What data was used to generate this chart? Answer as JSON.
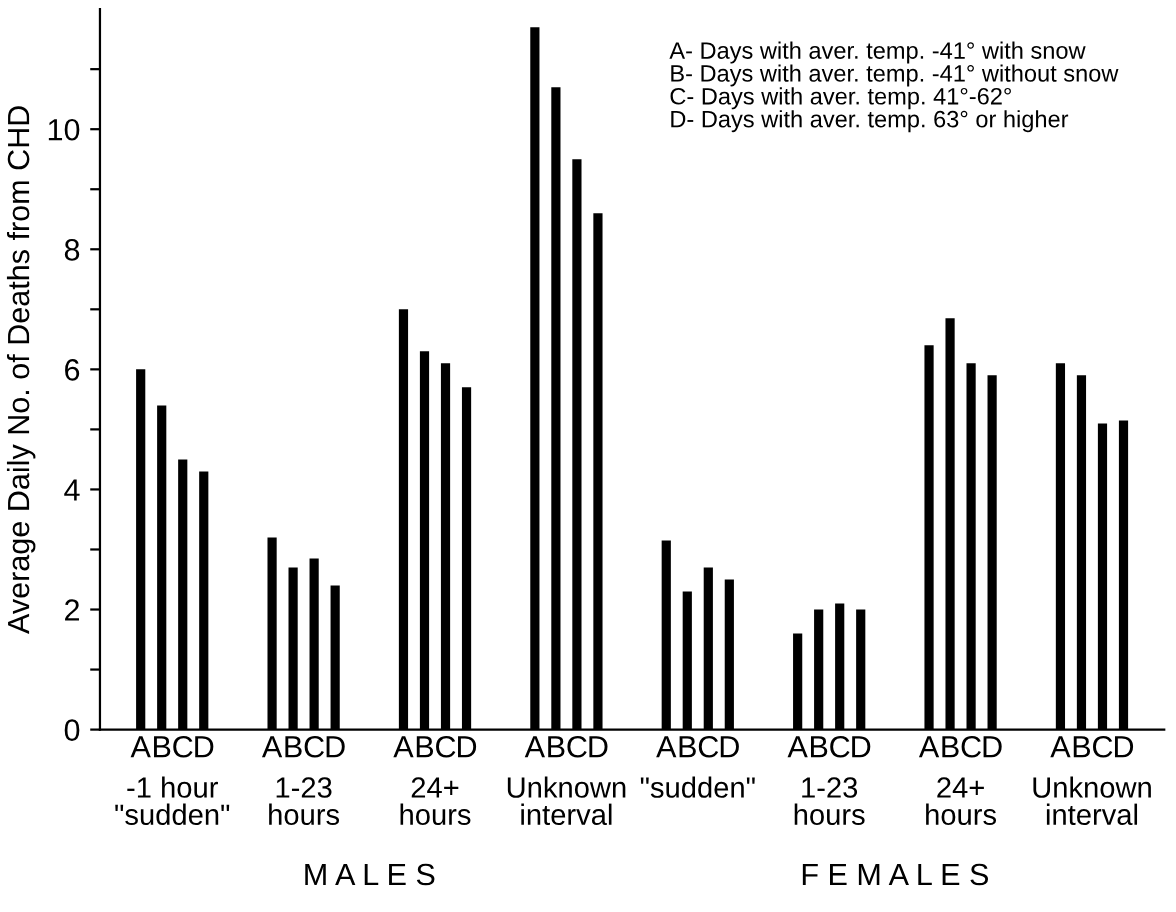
{
  "chart_data": {
    "type": "bar",
    "ylabel": "Average Daily No. of Deaths from CHD",
    "categories": [
      "-1 hour\n\"sudden\"",
      "1-23\nhours",
      "24+\nhours",
      "Unknown\ninterval",
      "\"sudden\"",
      "1-23\nhours",
      "24+\nhours",
      "Unknown\ninterval"
    ],
    "series": [
      {
        "name": "A",
        "color": "#000000",
        "values": [
          6.0,
          3.2,
          7.0,
          11.7,
          3.15,
          1.6,
          6.4,
          6.1
        ]
      },
      {
        "name": "B",
        "color": "#000000",
        "values": [
          5.4,
          2.7,
          6.3,
          10.7,
          2.3,
          2.0,
          6.85,
          5.9
        ]
      },
      {
        "name": "C",
        "color": "#000000",
        "values": [
          4.5,
          2.85,
          6.1,
          9.5,
          2.7,
          2.1,
          6.1,
          5.1
        ]
      },
      {
        "name": "D",
        "color": "#000000",
        "values": [
          4.3,
          2.4,
          5.7,
          8.6,
          2.5,
          2.0,
          5.9,
          5.15
        ]
      }
    ],
    "ylim": [
      0,
      12
    ],
    "yticks": [
      0,
      {
        "value": 1,
        "label": null
      },
      2,
      {
        "value": 3,
        "label": null
      },
      4,
      {
        "value": 5,
        "label": null
      },
      6,
      {
        "value": 7,
        "label": null
      },
      8,
      {
        "value": 9,
        "label": null
      },
      10,
      {
        "value": 11,
        "label": null
      }
    ],
    "annotations": [
      "A- Days with aver. temp. -41° with snow\nB- Days with aver. temp. -41° without snow\nC- Days with aver. temp. 41°-62°\nD- Days with aver. temp. 63° or higher",
      "M A L E S",
      "F E M A L E S"
    ],
    "grid": false,
    "legend": false
  }
}
